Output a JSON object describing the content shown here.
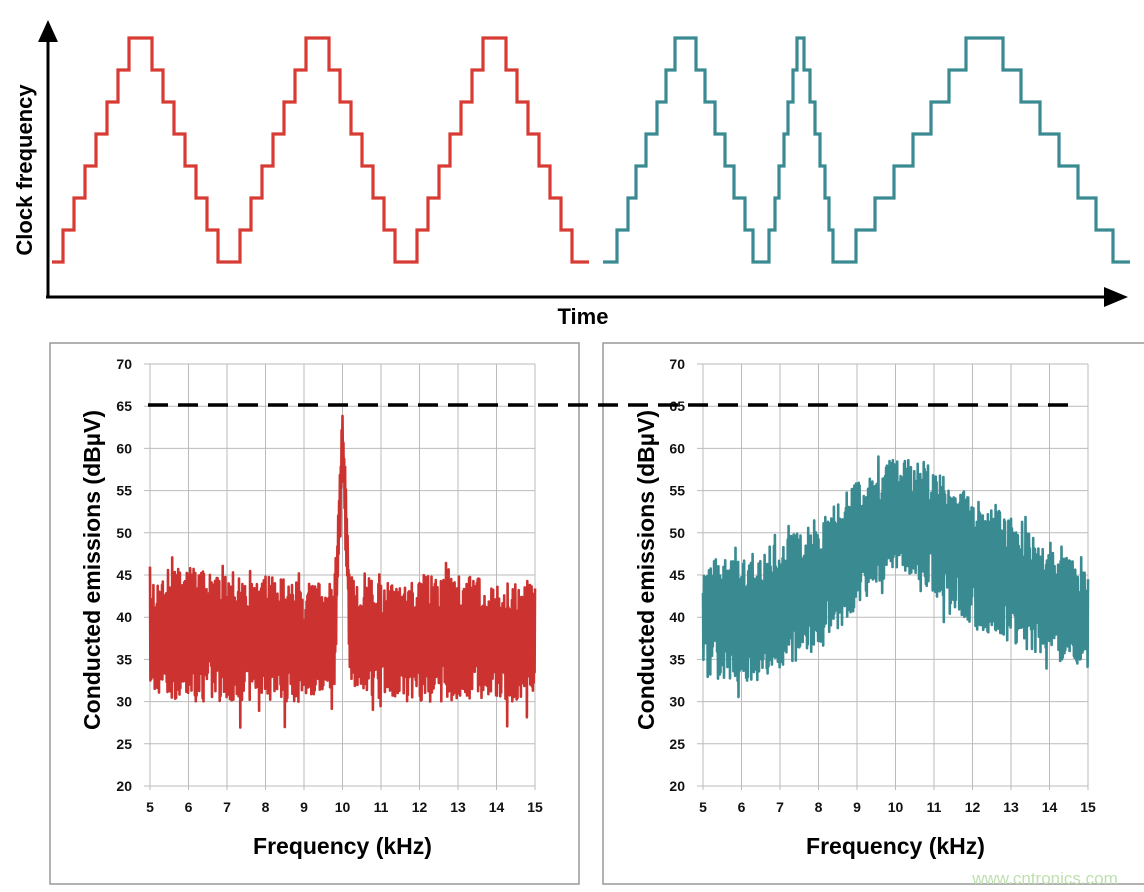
{
  "top_diagram": {
    "ylabel": "Clock frequency",
    "xlabel": "Time",
    "left_color": "#d83a34",
    "right_color": "#3a8a92"
  },
  "chart_data": [
    {
      "type": "line",
      "xlabel": "Frequency (kHz)",
      "ylabel": "Conducted emissions (dBµV)",
      "xlim": [
        5,
        15
      ],
      "ylim": [
        20,
        70
      ],
      "xticks": [
        "5",
        "6",
        "7",
        "8",
        "9",
        "10",
        "11",
        "12",
        "13",
        "14",
        "15"
      ],
      "yticks": [
        "20",
        "25",
        "30",
        "35",
        "40",
        "45",
        "50",
        "55",
        "60",
        "65",
        "70"
      ],
      "grid": true,
      "color": "#cc3330",
      "reference_line": {
        "y": 65,
        "style": "dashed"
      },
      "envelope": {
        "x": [
          5,
          6,
          7,
          8,
          9,
          9.8,
          10,
          10.2,
          11,
          12,
          13,
          14,
          15
        ],
        "upper": [
          46,
          46,
          45,
          45,
          44,
          44,
          64.5,
          45,
          44,
          45,
          45,
          44,
          44
        ],
        "lower": [
          31,
          30,
          30,
          30,
          30,
          32,
          60,
          32,
          30,
          30,
          30,
          30,
          30
        ]
      }
    },
    {
      "type": "line",
      "xlabel": "Frequency (kHz)",
      "ylabel": "Conducted emissions (dBµV)",
      "xlim": [
        5,
        15
      ],
      "ylim": [
        20,
        70
      ],
      "xticks": [
        "5",
        "6",
        "7",
        "8",
        "9",
        "10",
        "11",
        "12",
        "13",
        "14",
        "15"
      ],
      "yticks": [
        "20",
        "25",
        "30",
        "35",
        "40",
        "45",
        "50",
        "55",
        "60",
        "65",
        "70"
      ],
      "grid": true,
      "color": "#3a8a92",
      "reference_line": {
        "y": 65,
        "style": "dashed"
      },
      "envelope": {
        "x": [
          5,
          6,
          7,
          8,
          9,
          10,
          11,
          12,
          13,
          14,
          15
        ],
        "upper": [
          47,
          47,
          49,
          52,
          56,
          59,
          58,
          54,
          52,
          48,
          46
        ],
        "lower": [
          33,
          32,
          34,
          36,
          41,
          46,
          43,
          39,
          37,
          35,
          34
        ]
      }
    }
  ],
  "watermark": "www.cntronics.com"
}
